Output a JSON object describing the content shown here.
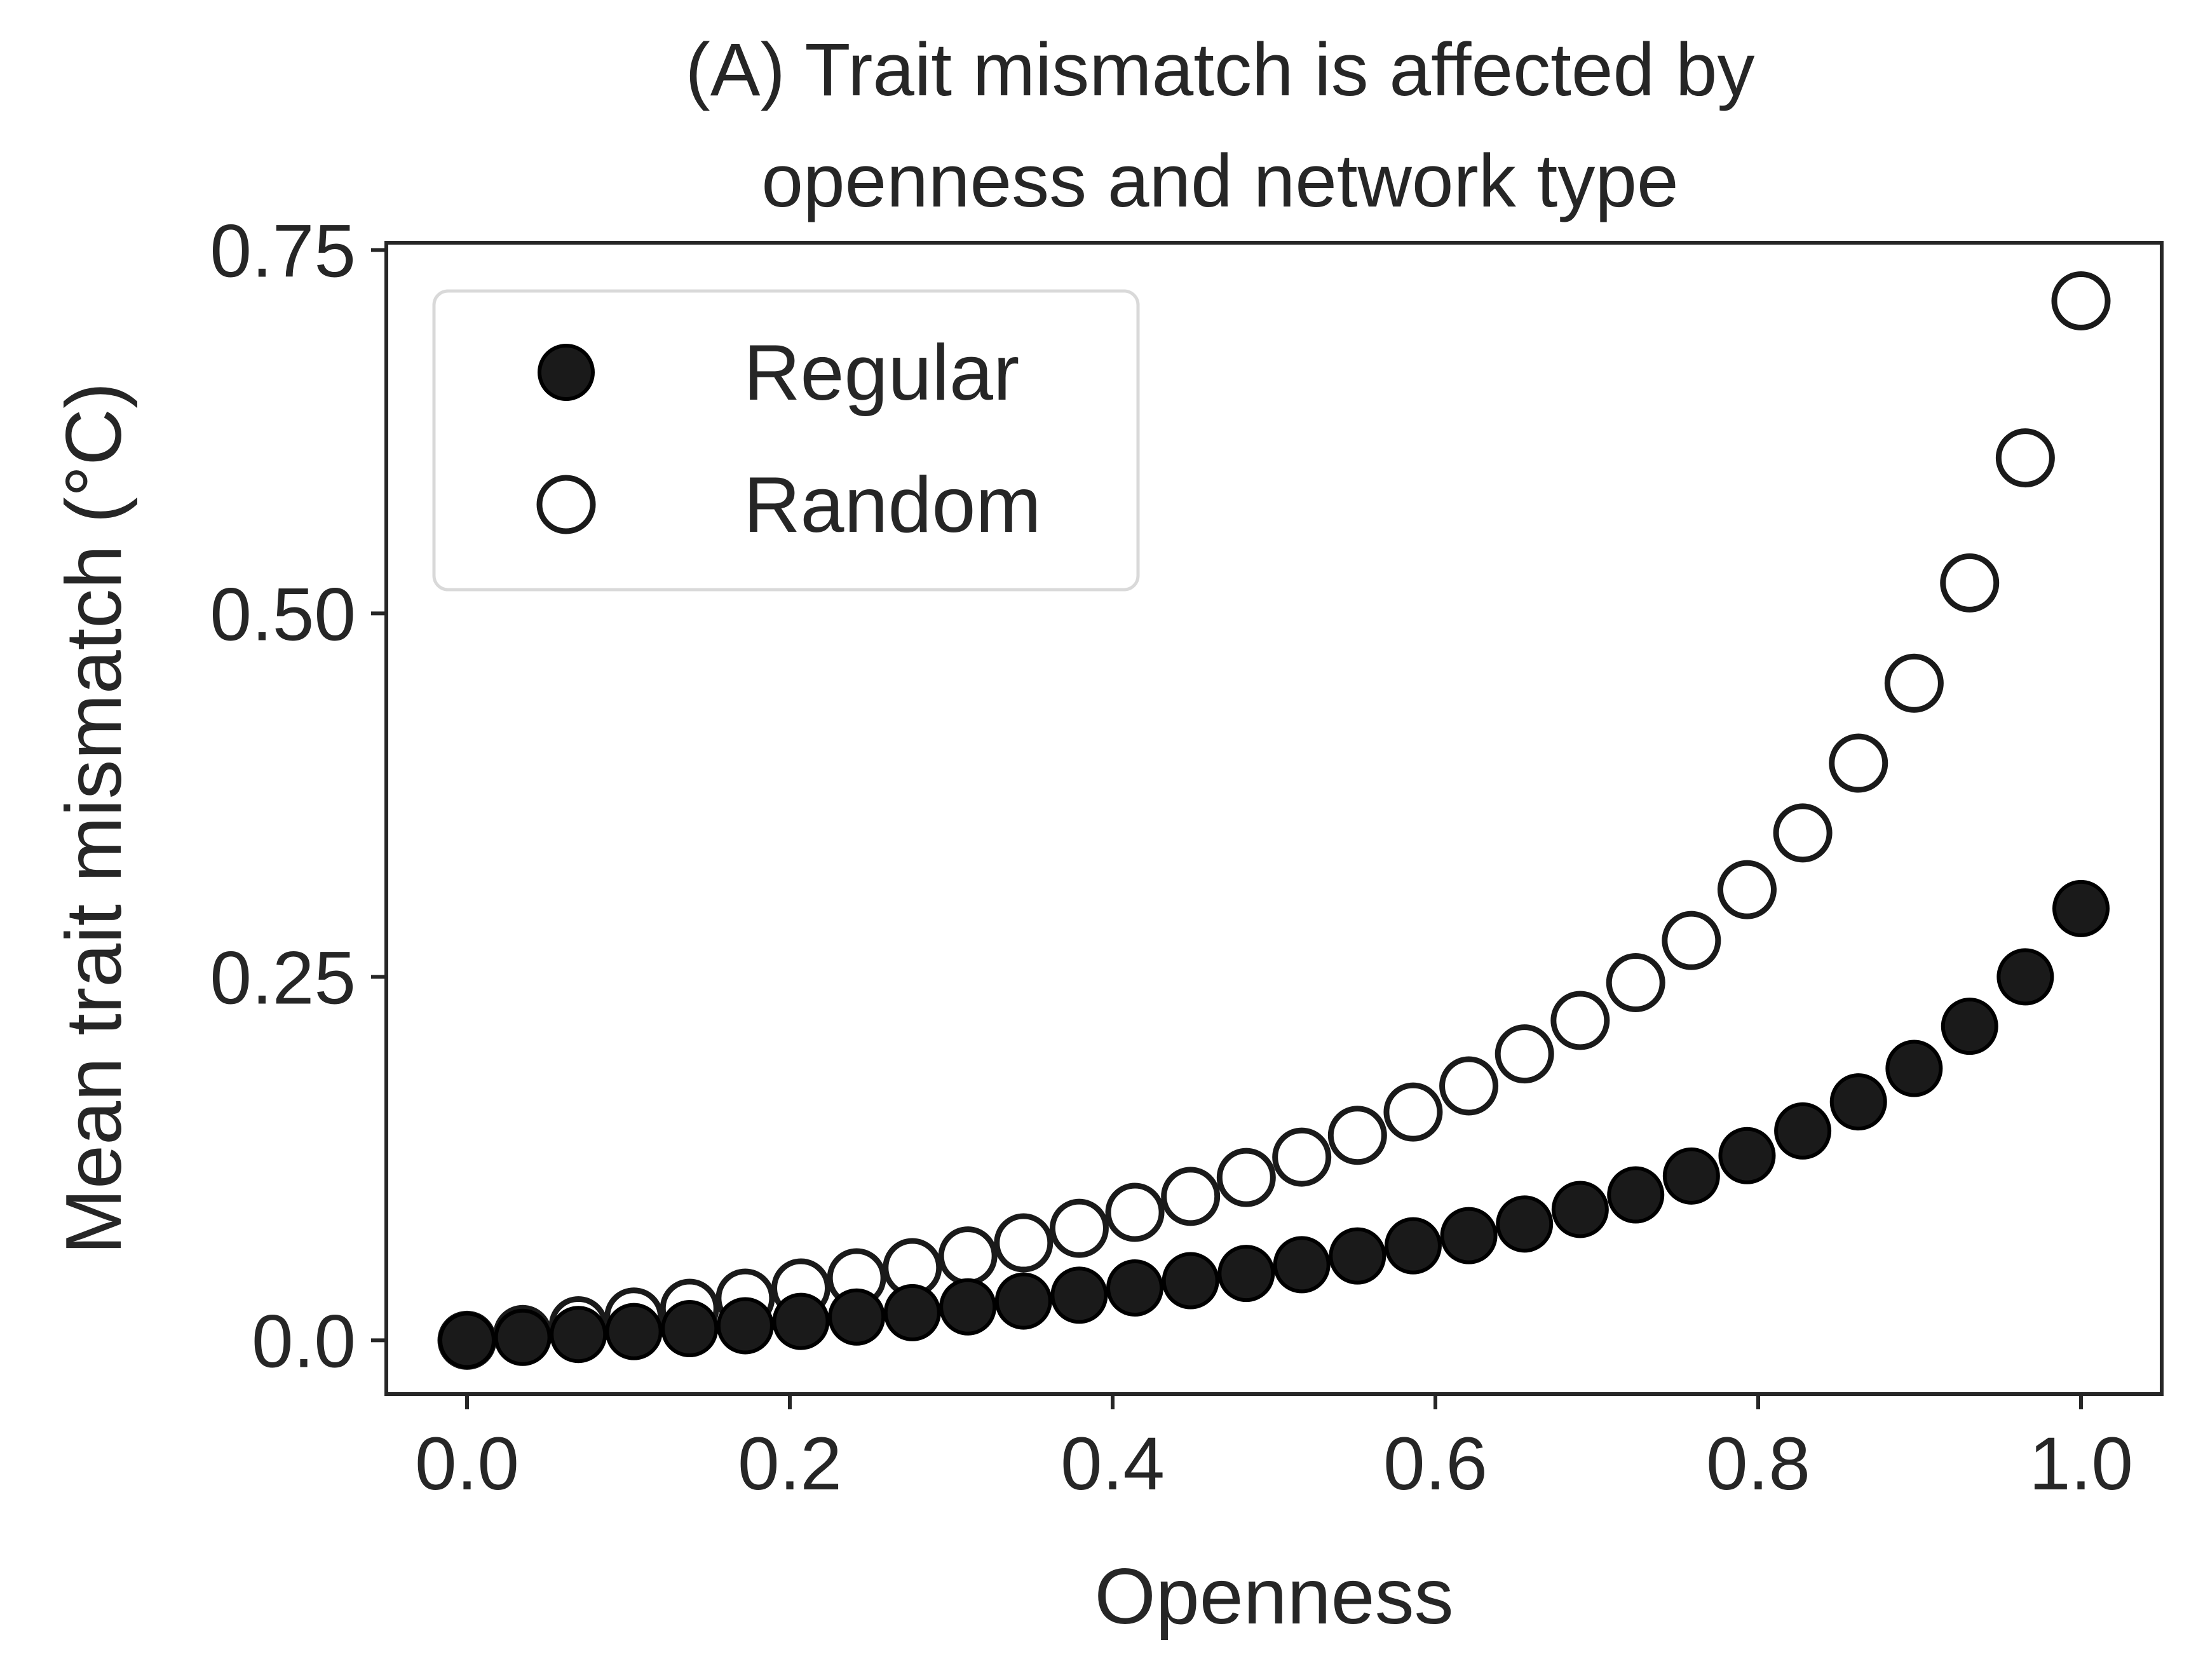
{
  "chart_data": {
    "type": "scatter",
    "title_lines": [
      "(A) Trait mismatch is affected by",
      "openness and network type"
    ],
    "xlabel": "Openness",
    "ylabel": "Mean trait mismatch (°C)",
    "xlim": [
      -0.05,
      1.05
    ],
    "ylim": [
      -0.037,
      0.755
    ],
    "xticks": [
      0.0,
      0.2,
      0.4,
      0.6,
      0.8,
      1.0
    ],
    "xtick_labels": [
      "0.0",
      "0.2",
      "0.4",
      "0.6",
      "0.8",
      "1.0"
    ],
    "yticks": [
      0.0,
      0.25,
      0.5,
      0.75
    ],
    "ytick_labels": [
      "0.0",
      "0.25",
      "0.50",
      "0.75"
    ],
    "grid": false,
    "legend_position": "top-left",
    "x": [
      0.0,
      0.0345,
      0.069,
      0.1034,
      0.1379,
      0.1724,
      0.2069,
      0.2414,
      0.2759,
      0.3103,
      0.3448,
      0.3793,
      0.4138,
      0.4483,
      0.4828,
      0.5172,
      0.5517,
      0.5862,
      0.6207,
      0.6552,
      0.6897,
      0.7241,
      0.7586,
      0.7931,
      0.8276,
      0.8621,
      0.8966,
      0.931,
      0.9655,
      1.0
    ],
    "series": [
      {
        "name": "Regular",
        "marker": "filled",
        "color": "#1a1a1a",
        "values": [
          0.0,
          0.002,
          0.004,
          0.006,
          0.008,
          0.01,
          0.013,
          0.016,
          0.019,
          0.023,
          0.027,
          0.031,
          0.036,
          0.041,
          0.046,
          0.052,
          0.058,
          0.065,
          0.072,
          0.08,
          0.09,
          0.1,
          0.113,
          0.127,
          0.144,
          0.164,
          0.187,
          0.216,
          0.25,
          0.297
        ]
      },
      {
        "name": "Random",
        "marker": "open",
        "color": "#1a1a1a",
        "values": [
          0.0,
          0.004,
          0.01,
          0.016,
          0.022,
          0.029,
          0.036,
          0.043,
          0.05,
          0.058,
          0.067,
          0.077,
          0.088,
          0.099,
          0.112,
          0.126,
          0.141,
          0.157,
          0.175,
          0.197,
          0.22,
          0.246,
          0.275,
          0.31,
          0.349,
          0.397,
          0.452,
          0.521,
          0.607,
          0.715
        ]
      }
    ]
  }
}
